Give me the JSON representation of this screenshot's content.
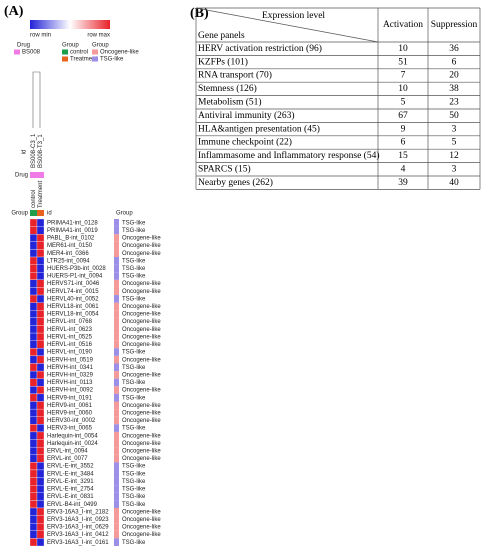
{
  "panel_a": {
    "label": "(A)",
    "color_key": {
      "min_label": "row min",
      "max_label": "row max",
      "min_color": "#2323d8",
      "max_color": "#e8222a"
    },
    "legends": [
      {
        "title": "Drug",
        "items": [
          {
            "label": "BS008",
            "color": "#f07ae6"
          }
        ]
      },
      {
        "title": "Group",
        "items": [
          {
            "label": "control",
            "color": "#1e9e4a"
          },
          {
            "label": "Treatment",
            "color": "#e8641e"
          }
        ]
      },
      {
        "title": "Group",
        "items": [
          {
            "label": "Oncogene-like",
            "color": "#f49a9a"
          },
          {
            "label": "TSG-like",
            "color": "#9b8fe8"
          }
        ]
      }
    ],
    "id_label": "id",
    "drug_label": "Drug",
    "group_label": "Group",
    "columns": [
      {
        "sample": "BS008-C3_1",
        "drug": "BS008",
        "group": "control"
      },
      {
        "sample": "BS008-T3_1",
        "drug": "BS008",
        "group": "Treatment"
      }
    ],
    "row_header_id": "id",
    "row_header_group": "Group",
    "rows": [
      {
        "id": "PRIMA41-int_0128",
        "group": "TSG-like",
        "cells": [
          "#e8222a",
          "#2323d8"
        ]
      },
      {
        "id": "PRIMA41-int_0019",
        "group": "TSG-like",
        "cells": [
          "#e8222a",
          "#2323d8"
        ]
      },
      {
        "id": "PABL_B-int_0102",
        "group": "Oncogene-like",
        "cells": [
          "#2323d8",
          "#e8222a"
        ]
      },
      {
        "id": "MER61-int_0150",
        "group": "Oncogene-like",
        "cells": [
          "#2323d8",
          "#e8222a"
        ]
      },
      {
        "id": "MER4-int_0366",
        "group": "Oncogene-like",
        "cells": [
          "#2323d8",
          "#e8222a"
        ]
      },
      {
        "id": "LTR25-int_0094",
        "group": "TSG-like",
        "cells": [
          "#e8222a",
          "#2323d8"
        ]
      },
      {
        "id": "HUERS-P3b-int_0028",
        "group": "TSG-like",
        "cells": [
          "#e8222a",
          "#2323d8"
        ]
      },
      {
        "id": "HUERS-P1-int_0094",
        "group": "TSG-like",
        "cells": [
          "#e8222a",
          "#2323d8"
        ]
      },
      {
        "id": "HERVS71-int_0046",
        "group": "Oncogene-like",
        "cells": [
          "#2323d8",
          "#e8222a"
        ]
      },
      {
        "id": "HERVL74-int_0015",
        "group": "Oncogene-like",
        "cells": [
          "#2323d8",
          "#e8222a"
        ]
      },
      {
        "id": "HERVL40-int_0052",
        "group": "TSG-like",
        "cells": [
          "#e8222a",
          "#2323d8"
        ]
      },
      {
        "id": "HERVL18-int_0061",
        "group": "Oncogene-like",
        "cells": [
          "#2323d8",
          "#e8222a"
        ]
      },
      {
        "id": "HERVL18-int_0054",
        "group": "Oncogene-like",
        "cells": [
          "#2323d8",
          "#e8222a"
        ]
      },
      {
        "id": "HERVL-int_0768",
        "group": "Oncogene-like",
        "cells": [
          "#2323d8",
          "#e8222a"
        ]
      },
      {
        "id": "HERVL-int_0623",
        "group": "Oncogene-like",
        "cells": [
          "#2323d8",
          "#e8222a"
        ]
      },
      {
        "id": "HERVL-int_0525",
        "group": "Oncogene-like",
        "cells": [
          "#2323d8",
          "#e8222a"
        ]
      },
      {
        "id": "HERVL-int_0516",
        "group": "Oncogene-like",
        "cells": [
          "#2323d8",
          "#e8222a"
        ]
      },
      {
        "id": "HERVL-int_0190",
        "group": "TSG-like",
        "cells": [
          "#e8222a",
          "#2323d8"
        ]
      },
      {
        "id": "HERVH-int_0519",
        "group": "Oncogene-like",
        "cells": [
          "#2323d8",
          "#e8222a"
        ]
      },
      {
        "id": "HERVH-int_0341",
        "group": "TSG-like",
        "cells": [
          "#e8222a",
          "#2323d8"
        ]
      },
      {
        "id": "HERVH-int_0329",
        "group": "Oncogene-like",
        "cells": [
          "#2323d8",
          "#e8222a"
        ]
      },
      {
        "id": "HERVH-int_0113",
        "group": "TSG-like",
        "cells": [
          "#e8222a",
          "#2323d8"
        ]
      },
      {
        "id": "HERVH-int_0092",
        "group": "Oncogene-like",
        "cells": [
          "#2323d8",
          "#e8222a"
        ]
      },
      {
        "id": "HERV9-int_0191",
        "group": "TSG-like",
        "cells": [
          "#e8222a",
          "#2323d8"
        ]
      },
      {
        "id": "HERV9-int_0061",
        "group": "Oncogene-like",
        "cells": [
          "#2323d8",
          "#e8222a"
        ]
      },
      {
        "id": "HERV9-int_0060",
        "group": "Oncogene-like",
        "cells": [
          "#2323d8",
          "#e8222a"
        ]
      },
      {
        "id": "HERV30-int_0002",
        "group": "Oncogene-like",
        "cells": [
          "#2323d8",
          "#e8222a"
        ]
      },
      {
        "id": "HERV3-int_0065",
        "group": "TSG-like",
        "cells": [
          "#e8222a",
          "#2323d8"
        ]
      },
      {
        "id": "Harlequin-int_0054",
        "group": "Oncogene-like",
        "cells": [
          "#2323d8",
          "#e8222a"
        ]
      },
      {
        "id": "Harlequin-int_0024",
        "group": "Oncogene-like",
        "cells": [
          "#2323d8",
          "#e8222a"
        ]
      },
      {
        "id": "ERVL-int_0094",
        "group": "Oncogene-like",
        "cells": [
          "#2323d8",
          "#e8222a"
        ]
      },
      {
        "id": "ERVL-int_0077",
        "group": "Oncogene-like",
        "cells": [
          "#2323d8",
          "#e8222a"
        ]
      },
      {
        "id": "ERVL-E-int_3552",
        "group": "TSG-like",
        "cells": [
          "#e8222a",
          "#2323d8"
        ]
      },
      {
        "id": "ERVL-E-int_3484",
        "group": "TSG-like",
        "cells": [
          "#e8222a",
          "#2323d8"
        ]
      },
      {
        "id": "ERVL-E-int_3291",
        "group": "TSG-like",
        "cells": [
          "#e8222a",
          "#2323d8"
        ]
      },
      {
        "id": "ERVL-E-int_2754",
        "group": "TSG-like",
        "cells": [
          "#e8222a",
          "#2323d8"
        ]
      },
      {
        "id": "ERVL-E-int_0831",
        "group": "TSG-like",
        "cells": [
          "#e8222a",
          "#2323d8"
        ]
      },
      {
        "id": "ERVL-B4-int_0499",
        "group": "TSG-like",
        "cells": [
          "#e8222a",
          "#2323d8"
        ]
      },
      {
        "id": "ERV3-16A3_I-int_2182",
        "group": "Oncogene-like",
        "cells": [
          "#2323d8",
          "#e8222a"
        ]
      },
      {
        "id": "ERV3-16A3_I-int_0923",
        "group": "Oncogene-like",
        "cells": [
          "#2323d8",
          "#e8222a"
        ]
      },
      {
        "id": "ERV3-16A3_I-int_0629",
        "group": "Oncogene-like",
        "cells": [
          "#2323d8",
          "#e8222a"
        ]
      },
      {
        "id": "ERV3-16A3_I-int_0412",
        "group": "Oncogene-like",
        "cells": [
          "#2323d8",
          "#e8222a"
        ]
      },
      {
        "id": "ERV3-16A3_I-int_0161",
        "group": "TSG-like",
        "cells": [
          "#e8222a",
          "#2323d8"
        ]
      }
    ]
  },
  "panel_b": {
    "label": "(B)",
    "corner_top": "Expression level",
    "corner_bottom": "Gene panels",
    "columns": [
      "Activation",
      "Suppression"
    ],
    "rows": [
      [
        "HERV activation restriction (96)",
        10,
        36
      ],
      [
        "KZFPs (101)",
        51,
        6
      ],
      [
        "RNA transport (70)",
        7,
        20
      ],
      [
        "Stemness (126)",
        10,
        38
      ],
      [
        "Metabolism (51)",
        5,
        23
      ],
      [
        "Antiviral immunity (263)",
        67,
        50
      ],
      [
        "HLA&antigen presentation (45)",
        9,
        3
      ],
      [
        "Immune checkpoint (22)",
        6,
        5
      ],
      [
        "Inflammasome and Inflammatory response (54)",
        15,
        12
      ],
      [
        "SPARCS (15)",
        4,
        3
      ],
      [
        "Nearby genes (262)",
        39,
        40
      ]
    ]
  }
}
